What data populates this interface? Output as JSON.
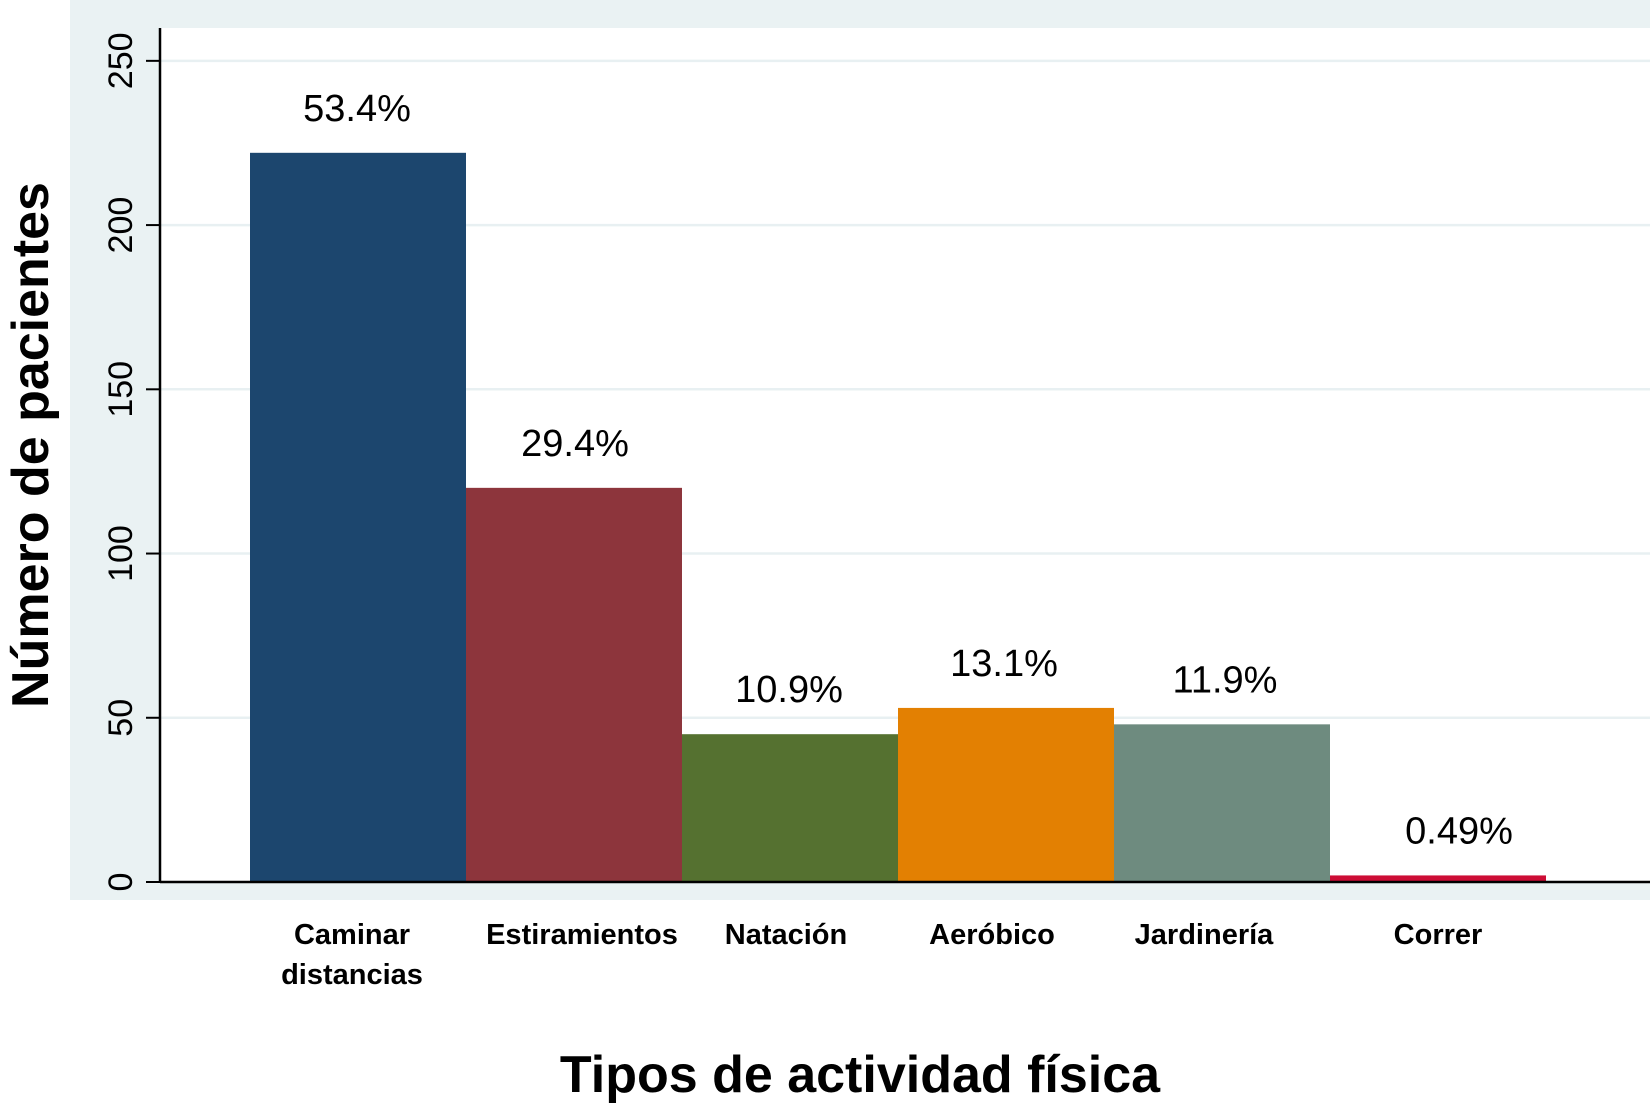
{
  "chart_data": {
    "type": "bar",
    "title": "",
    "xlabel": "Tipos de actividad física",
    "ylabel": "Número de pacientes",
    "ylim": [
      0,
      260
    ],
    "yticks": [
      0,
      50,
      100,
      150,
      200,
      250
    ],
    "grid": true,
    "legend": "none",
    "categories": [
      [
        "Caminar",
        "distancias"
      ],
      [
        "Estiramientos"
      ],
      [
        "Natación"
      ],
      [
        "Aeróbico"
      ],
      [
        "Jardinería"
      ],
      [
        "Correr"
      ]
    ],
    "values": [
      222,
      120,
      45,
      53,
      48,
      2
    ],
    "data_labels": [
      "53.4%",
      "29.4%",
      "10.9%",
      "13.1%",
      "11.9%",
      "0.49%"
    ],
    "colors": [
      "#1c466e",
      "#8d353c",
      "#557130",
      "#e38002",
      "#6e8b7f",
      "#cd0d35"
    ],
    "panel_background": "#eaf2f3",
    "plot_background": "#ffffff",
    "grid_color": "#e8f0f2"
  }
}
